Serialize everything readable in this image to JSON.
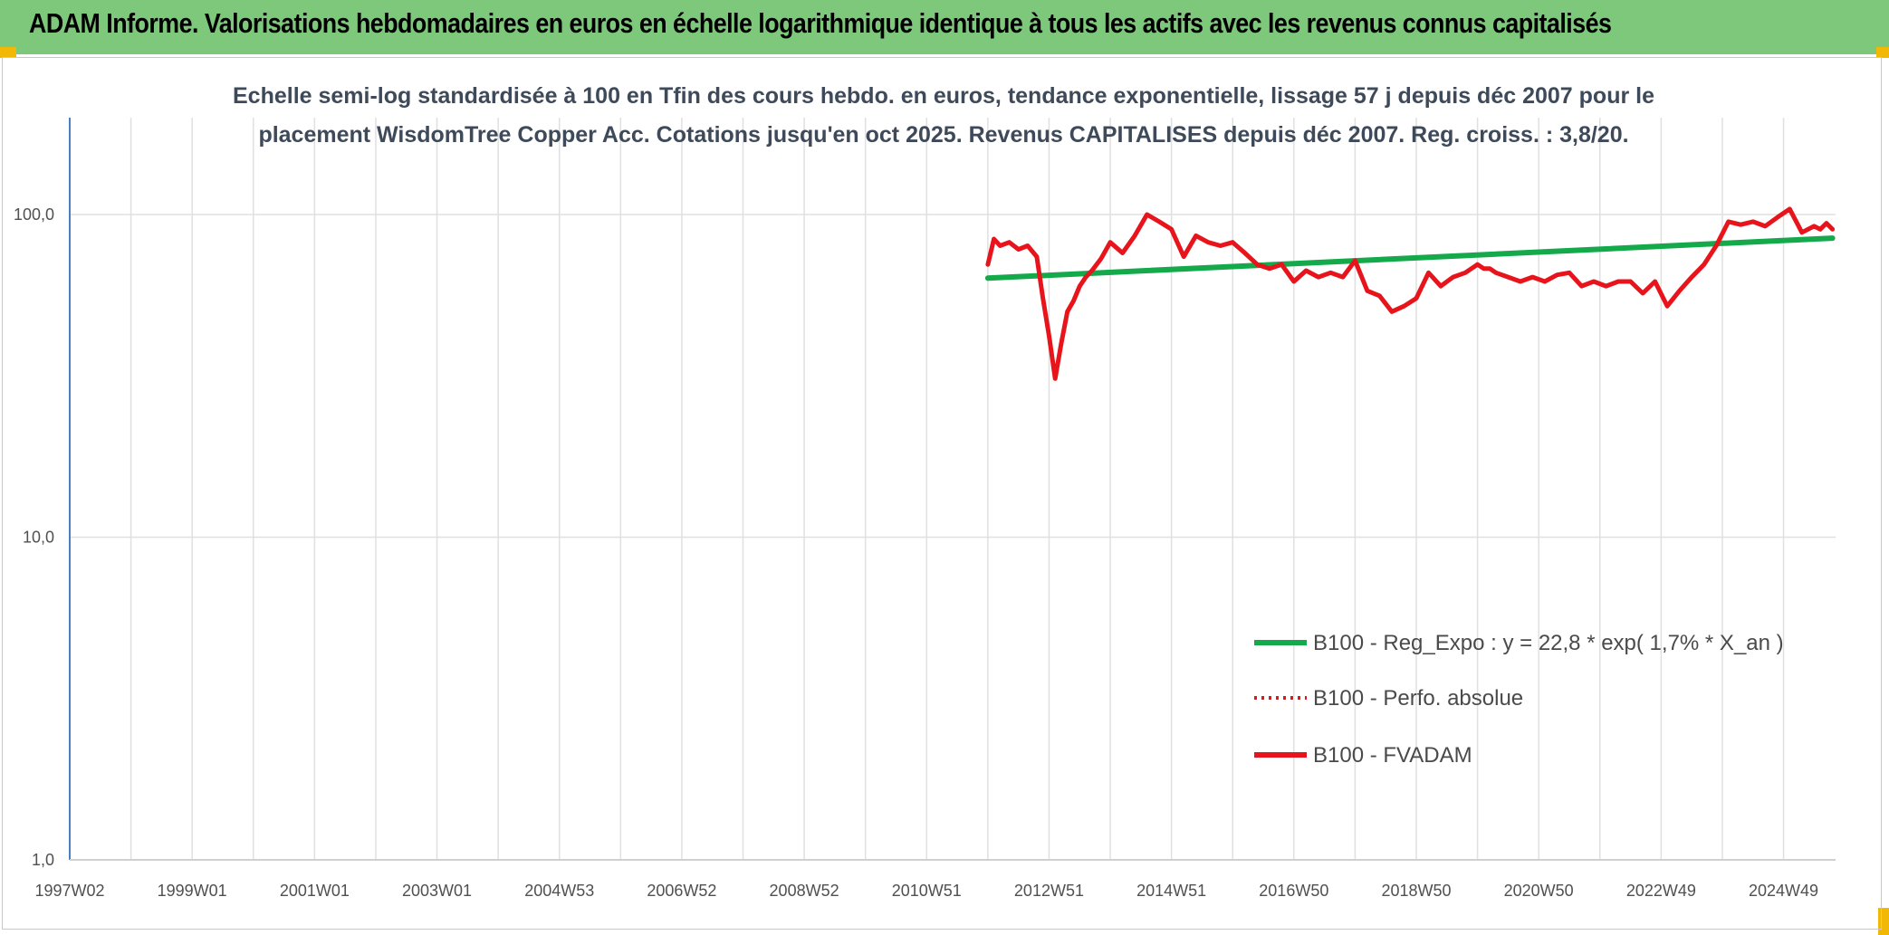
{
  "header": {
    "title": "ADAM Informe. Valorisations hebdomadaires en euros en échelle logarithmique identique à tous les actifs avec les revenus connus capitalisés"
  },
  "colors": {
    "header_bg": "#7dc87a",
    "corner_accent": "#f2b806",
    "fvadam": "#e8141c",
    "trend": "#14a94a",
    "grid": "#e0e0e0",
    "axis": "#4a7fc1"
  },
  "chart_data": {
    "type": "line",
    "title_lines": [
      "Echelle semi-log standardisée à 100 en Tfin des cours hebdo. en euros, tendance exponentielle, lissage 57 j depuis déc 2007 pour le",
      "placement WisdomTree Copper Acc. Cotations jusqu'en oct 2025. Revenus CAPITALISES depuis déc 2007. Reg. croiss. : 3,8/20."
    ],
    "y_scale": "log",
    "ylim": [
      1,
      200
    ],
    "y_ticks": [
      {
        "value": 1,
        "label": "1,0"
      },
      {
        "value": 10,
        "label": "10,0"
      },
      {
        "value": 100,
        "label": "100,0"
      }
    ],
    "xlim": [
      1997.0,
      2025.85
    ],
    "x_ticks": [
      {
        "value": 1997.0,
        "label": "1997W02"
      },
      {
        "value": 1999.0,
        "label": "1999W01"
      },
      {
        "value": 2001.0,
        "label": "2001W01"
      },
      {
        "value": 2003.0,
        "label": "2003W01"
      },
      {
        "value": 2005.0,
        "label": "2004W53"
      },
      {
        "value": 2007.0,
        "label": "2006W52"
      },
      {
        "value": 2009.0,
        "label": "2008W52"
      },
      {
        "value": 2011.0,
        "label": "2010W51"
      },
      {
        "value": 2013.0,
        "label": "2012W51"
      },
      {
        "value": 2015.0,
        "label": "2014W51"
      },
      {
        "value": 2017.0,
        "label": "2016W50"
      },
      {
        "value": 2019.0,
        "label": "2018W50"
      },
      {
        "value": 2021.0,
        "label": "2020W50"
      },
      {
        "value": 2023.0,
        "label": "2022W49"
      },
      {
        "value": 2025.0,
        "label": "2024W49"
      }
    ],
    "x_minor_ticks": [
      1998.0,
      2000.0,
      2002.0,
      2004.0,
      2006.0,
      2008.0,
      2010.0,
      2012.0,
      2014.0,
      2016.0,
      2018.0,
      2020.0,
      2022.0,
      2024.0
    ],
    "grid": true,
    "legend_position": "lower-right",
    "series": [
      {
        "name": "B100 - Reg_Expo : y = 22,8 * exp( 1,7% *  X_an )",
        "color": "#14a94a",
        "style": "solid",
        "x": [
          2012.0,
          2025.8
        ],
        "y": [
          63.5,
          84.5
        ]
      },
      {
        "name": "B100 - Perfo. absolue",
        "color": "#e8141c",
        "style": "dotted",
        "x": [],
        "y": []
      },
      {
        "name": "B100 - FVADAM",
        "color": "#e8141c",
        "style": "solid",
        "x": [
          2012.0,
          2012.1,
          2012.2,
          2012.35,
          2012.5,
          2012.65,
          2012.8,
          2012.9,
          2013.0,
          2013.1,
          2013.2,
          2013.3,
          2013.4,
          2013.5,
          2013.6,
          2013.7,
          2013.85,
          2014.0,
          2014.2,
          2014.4,
          2014.6,
          2014.8,
          2015.0,
          2015.2,
          2015.4,
          2015.6,
          2015.8,
          2016.0,
          2016.2,
          2016.4,
          2016.6,
          2016.8,
          2017.0,
          2017.2,
          2017.4,
          2017.6,
          2017.8,
          2018.0,
          2018.2,
          2018.4,
          2018.6,
          2018.8,
          2019.0,
          2019.2,
          2019.4,
          2019.6,
          2019.8,
          2020.0,
          2020.1,
          2020.2,
          2020.3,
          2020.5,
          2020.7,
          2020.9,
          2021.1,
          2021.3,
          2021.5,
          2021.7,
          2021.9,
          2022.1,
          2022.3,
          2022.5,
          2022.7,
          2022.9,
          2023.1,
          2023.3,
          2023.5,
          2023.7,
          2023.9,
          2024.1,
          2024.3,
          2024.5,
          2024.7,
          2024.9,
          2025.1,
          2025.3,
          2025.5,
          2025.6,
          2025.7,
          2025.8
        ],
        "y": [
          70,
          84,
          80,
          82,
          78,
          80,
          74,
          55,
          42,
          31,
          40,
          50,
          54,
          60,
          64,
          67,
          73,
          82,
          76,
          86,
          100,
          95,
          90,
          74,
          86,
          82,
          80,
          82,
          76,
          70,
          68,
          70,
          62,
          67,
          64,
          66,
          64,
          72,
          58,
          56,
          50,
          52,
          55,
          66,
          60,
          64,
          66,
          70,
          68,
          68,
          66,
          64,
          62,
          64,
          62,
          65,
          66,
          60,
          62,
          60,
          62,
          62,
          57,
          62,
          52,
          58,
          64,
          70,
          80,
          95,
          93,
          95,
          92,
          98,
          104,
          88,
          92,
          90,
          94,
          90
        ]
      }
    ]
  }
}
